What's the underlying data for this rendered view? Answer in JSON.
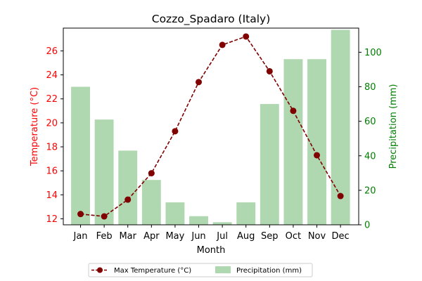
{
  "chart_data": {
    "type": "bar+line",
    "title": "Cozzo_Spadaro (Italy)",
    "xlabel": "Month",
    "ylabel_left": "Temperature (°C)",
    "ylabel_right": "Precipitation (mm)",
    "categories": [
      "Jan",
      "Feb",
      "Mar",
      "Apr",
      "May",
      "Jun",
      "Jul",
      "Aug",
      "Sep",
      "Oct",
      "Nov",
      "Dec"
    ],
    "left_axis": {
      "ylim": [
        11.5,
        27.9
      ],
      "ticks": [
        12,
        14,
        16,
        18,
        20,
        22,
        24,
        26
      ]
    },
    "right_axis": {
      "ylim": [
        0,
        114
      ],
      "ticks": [
        0,
        20,
        40,
        60,
        80,
        100
      ]
    },
    "series": [
      {
        "name": "Max Temperature (°C)",
        "kind": "line",
        "axis": "left",
        "color": "#800000",
        "values": [
          12.4,
          12.2,
          13.6,
          15.8,
          19.3,
          23.4,
          26.5,
          27.2,
          24.3,
          21.0,
          17.3,
          13.9
        ]
      },
      {
        "name": "Precipitation (mm)",
        "kind": "bar",
        "axis": "right",
        "color": "#b0d8b0",
        "values": [
          80,
          61,
          43,
          26,
          13,
          5,
          1.5,
          13,
          70,
          96,
          96,
          113
        ]
      }
    ],
    "legend_position": "bottom-center",
    "grid": false,
    "colors": {
      "left_axis": "#ff0000",
      "right_axis": "#008000"
    }
  }
}
